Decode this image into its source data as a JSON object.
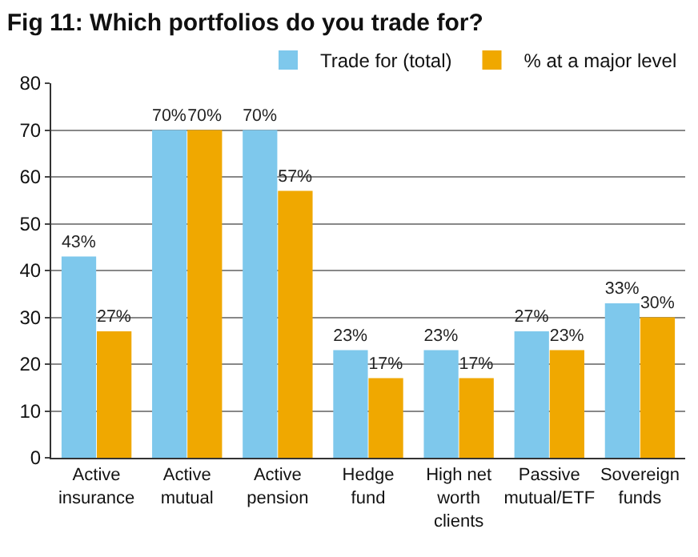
{
  "chart_data": {
    "type": "bar",
    "title": "Fig 11: Which portfolios do you trade for?",
    "categories": [
      "Active\ninsurance",
      "Active\nmutual",
      "Active\npension",
      "Hedge\nfund",
      "High net\nworth\nclients",
      "Passive\nmutual/ETF",
      "Sovereign\nfunds"
    ],
    "series": [
      {
        "name": "Trade for (total)",
        "color": "#7ec8ec",
        "values": [
          43,
          70,
          70,
          23,
          23,
          27,
          33
        ],
        "value_labels": [
          "43%",
          "70%",
          "70%",
          "23%",
          "23%",
          "27%",
          "33%"
        ]
      },
      {
        "name": "% at a major level",
        "color": "#f0a800",
        "values": [
          27,
          70,
          57,
          17,
          17,
          23,
          30
        ],
        "value_labels": [
          "27%",
          "70%",
          "57%",
          "17%",
          "17%",
          "23%",
          "30%"
        ]
      }
    ],
    "ylim": [
      0,
      80
    ],
    "yticks": [
      0,
      10,
      20,
      30,
      40,
      50,
      60,
      70,
      80
    ],
    "grid": "y",
    "legend": "top right"
  }
}
